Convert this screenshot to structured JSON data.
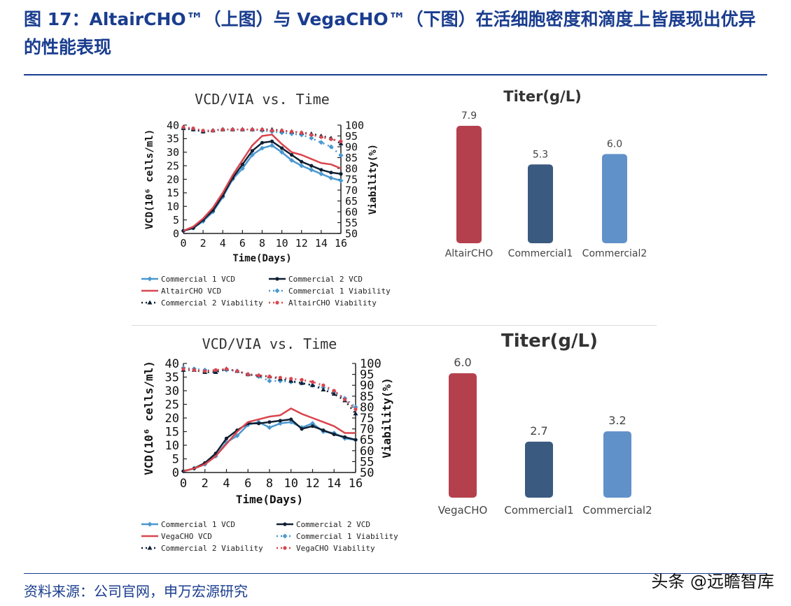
{
  "header": {
    "title": "图 17：AltairCHO™（上图）与 VegaCHO™（下图）在活细胞密度和滴度上皆展现出优异的性能表现"
  },
  "footer": {
    "source": "资料来源：公司官网，申万宏源研究",
    "watermark": "头条 @远瞻智库"
  },
  "colors": {
    "accent_blue": "#1a3d8f",
    "red": "#d9454e",
    "dark": "#0f1f33",
    "light_blue": "#4a98d0",
    "bar_red": "#b5404d",
    "bar_navy": "#3a5a80",
    "bar_blue": "#6191c9"
  },
  "chart_data": [
    {
      "type": "line",
      "title": "VCD/VIA vs. Time",
      "xlabel": "Time(Days)",
      "ylabel": "VCD(10⁶ cells/ml)",
      "y2label": "Viability(%)",
      "xlim": [
        0,
        16
      ],
      "ylim": [
        0,
        40
      ],
      "y2lim": [
        50,
        100
      ],
      "xticks": [
        "0",
        "2",
        "4",
        "6",
        "8",
        "10",
        "12",
        "14",
        "16"
      ],
      "yticks": [
        "0",
        "5",
        "10",
        "15",
        "20",
        "25",
        "30",
        "35",
        "40"
      ],
      "y2ticks": [
        "50",
        "55",
        "60",
        "65",
        "70",
        "75",
        "80",
        "85",
        "90",
        "95",
        "100"
      ],
      "legend": [
        "Commercial 1 VCD",
        "Commercial 2 VCD",
        "AltairCHO VCD",
        "Commercial 1 Viability",
        "Commercial 2 Viability",
        "AltairCHO Viability"
      ],
      "x": [
        0,
        1,
        2,
        3,
        4,
        5,
        6,
        7,
        8,
        9,
        10,
        11,
        12,
        13,
        14,
        15,
        16
      ],
      "series": [
        {
          "name": "Commercial 1 VCD",
          "axis": "left",
          "values": [
            1,
            2,
            4.5,
            8,
            13.5,
            20,
            24,
            29,
            31.5,
            32.5,
            30,
            27,
            25,
            23.5,
            22,
            20.5,
            19.5
          ]
        },
        {
          "name": "Commercial 2 VCD",
          "axis": "left",
          "values": [
            1,
            2,
            5,
            8.5,
            14,
            20.5,
            25.5,
            30.5,
            33.5,
            34,
            31.5,
            29,
            26.5,
            25,
            23.5,
            22.5,
            22
          ]
        },
        {
          "name": "AltairCHO VCD",
          "axis": "left",
          "values": [
            1,
            2.5,
            5.5,
            9.5,
            15,
            21.5,
            27,
            32.5,
            36,
            36.5,
            33,
            30,
            29,
            27.5,
            26,
            25.5,
            24
          ]
        },
        {
          "name": "Commercial 1 Viability",
          "axis": "right",
          "values": [
            98.5,
            98,
            97,
            97.5,
            98,
            98,
            98,
            98,
            97.5,
            97,
            96.5,
            96,
            95.5,
            94,
            92,
            90,
            86
          ]
        },
        {
          "name": "Commercial 2 Viability",
          "axis": "right",
          "values": [
            98.5,
            98,
            97,
            97.5,
            98,
            98,
            98,
            98,
            98,
            98,
            97.5,
            97,
            96.5,
            96,
            95,
            94,
            91.5
          ]
        },
        {
          "name": "AltairCHO Viability",
          "axis": "right",
          "values": [
            99,
            98.5,
            97.5,
            97.5,
            98,
            98,
            98,
            98,
            98,
            97.5,
            97.5,
            97,
            96.5,
            95.5,
            94.5,
            93.5,
            92.5
          ]
        }
      ]
    },
    {
      "type": "bar",
      "title": "Titer(g/L)",
      "categories": [
        "AltairCHO",
        "Commercial1",
        "Commercial2"
      ],
      "values": [
        7.9,
        5.3,
        6.0
      ],
      "value_labels": [
        "7.9",
        "5.3",
        "6.0"
      ]
    },
    {
      "type": "line",
      "title": "VCD/VIA vs. Time",
      "xlabel": "Time(Days)",
      "ylabel": "VCD(10⁶ cells/ml)",
      "y2label": "Viability(%)",
      "xlim": [
        0,
        16
      ],
      "ylim": [
        0,
        40
      ],
      "y2lim": [
        50,
        100
      ],
      "xticks": [
        "0",
        "2",
        "4",
        "6",
        "8",
        "10",
        "12",
        "14",
        "16"
      ],
      "yticks": [
        "0",
        "5",
        "10",
        "15",
        "20",
        "25",
        "30",
        "35",
        "40"
      ],
      "y2ticks": [
        "50",
        "55",
        "60",
        "65",
        "70",
        "75",
        "80",
        "85",
        "90",
        "95",
        "100"
      ],
      "legend": [
        "Commercial 1 VCD",
        "Commercial 2 VCD",
        "VegaCHO VCD",
        "Commercial 1 Viability",
        "Commercial 2 Viability",
        "VegaCHO Viability"
      ],
      "x": [
        0,
        1,
        2,
        3,
        4,
        5,
        6,
        7,
        8,
        9,
        10,
        11,
        12,
        13,
        14,
        15,
        16
      ],
      "series": [
        {
          "name": "Commercial 1 VCD",
          "axis": "left",
          "values": [
            0.5,
            1.5,
            3,
            6,
            11,
            13.5,
            17.5,
            18.5,
            16.5,
            18,
            18.5,
            16.5,
            18,
            15,
            14.5,
            12.5,
            12
          ]
        },
        {
          "name": "Commercial 2 VCD",
          "axis": "left",
          "values": [
            0.5,
            1.5,
            3.5,
            7,
            12.5,
            15.5,
            18,
            18,
            18.5,
            19,
            19.5,
            16,
            17,
            15.5,
            14,
            13,
            12
          ]
        },
        {
          "name": "VegaCHO VCD",
          "axis": "left",
          "values": [
            0.5,
            1.5,
            3,
            6,
            10.5,
            15,
            18.5,
            19.5,
            20.5,
            21,
            23.5,
            21.5,
            20,
            18.5,
            17,
            14.5,
            14.5
          ]
        },
        {
          "name": "Commercial 1 Viability",
          "axis": "right",
          "values": [
            98,
            97.5,
            97,
            96.5,
            97,
            96.5,
            95,
            94,
            92,
            92,
            91.5,
            91,
            90,
            89,
            87,
            84,
            80
          ]
        },
        {
          "name": "Commercial 2 Viability",
          "axis": "right",
          "values": [
            97,
            97,
            96,
            96,
            97.5,
            96.5,
            95,
            94.5,
            94,
            93,
            92,
            91,
            90,
            88,
            86,
            83,
            77
          ]
        },
        {
          "name": "VegaCHO Viability",
          "axis": "right",
          "values": [
            97.5,
            97,
            96.5,
            97,
            97.5,
            96.5,
            95,
            94.5,
            94,
            93.5,
            93,
            92.5,
            91.5,
            90,
            87.5,
            83.5,
            79
          ]
        }
      ]
    },
    {
      "type": "bar",
      "title": "Titer(g/L)",
      "categories": [
        "VegaCHO",
        "Commercial1",
        "Commercial2"
      ],
      "values": [
        6.0,
        2.7,
        3.2
      ],
      "value_labels": [
        "6.0",
        "2.7",
        "3.2"
      ]
    }
  ]
}
